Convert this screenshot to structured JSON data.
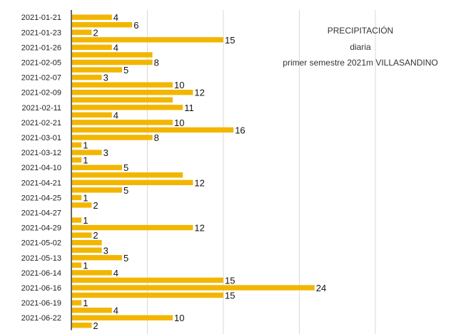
{
  "chart_data": {
    "type": "bar",
    "orientation": "horizontal",
    "title_lines": [
      "PRECIPITACIÓN",
      "diaria",
      "primer semestre 2021m VILLASANDINO"
    ],
    "color": "#F2B600",
    "xlim": [
      0,
      30
    ],
    "grid": true,
    "categories": [
      "2021-01-21",
      "",
      "2021-01-23",
      "",
      "2021-01-26",
      "",
      "2021-02-05",
      "",
      "2021-02-07",
      "",
      "2021-02-09",
      "",
      "2021-02-11",
      "",
      "2021-02-21",
      "",
      "2021-03-01",
      "",
      "2021-03-12",
      "",
      "2021-04-10",
      "",
      "2021-04-21",
      "",
      "2021-04-25",
      "",
      "2021-04-27",
      "",
      "2021-04-29",
      "",
      "2021-05-02",
      "",
      "2021-05-13",
      "",
      "2021-06-14",
      "",
      "2021-06-16",
      "",
      "2021-06-19",
      "",
      "2021-06-22",
      ""
    ],
    "values": [
      4,
      6,
      2,
      15,
      4,
      8,
      8,
      5,
      3,
      10,
      12,
      10,
      11,
      4,
      10,
      16,
      8,
      1,
      3,
      1,
      5,
      11,
      12,
      5,
      1,
      2,
      null,
      1,
      12,
      2,
      3,
      3,
      5,
      1,
      4,
      15,
      24,
      15,
      1,
      4,
      10,
      2
    ],
    "data_labels": [
      "4",
      "6",
      "2",
      "15",
      "4",
      "",
      "8",
      "5",
      "3",
      "10",
      "12",
      "",
      "11",
      "4",
      "10",
      "16",
      "8",
      "1",
      "3",
      "1",
      "5",
      "",
      "12",
      "5",
      "1",
      "2",
      "",
      "1",
      "12",
      "2",
      "",
      "3",
      "5",
      "1",
      "4",
      "15",
      "24",
      "15",
      "1",
      "4",
      "10",
      "2"
    ]
  }
}
